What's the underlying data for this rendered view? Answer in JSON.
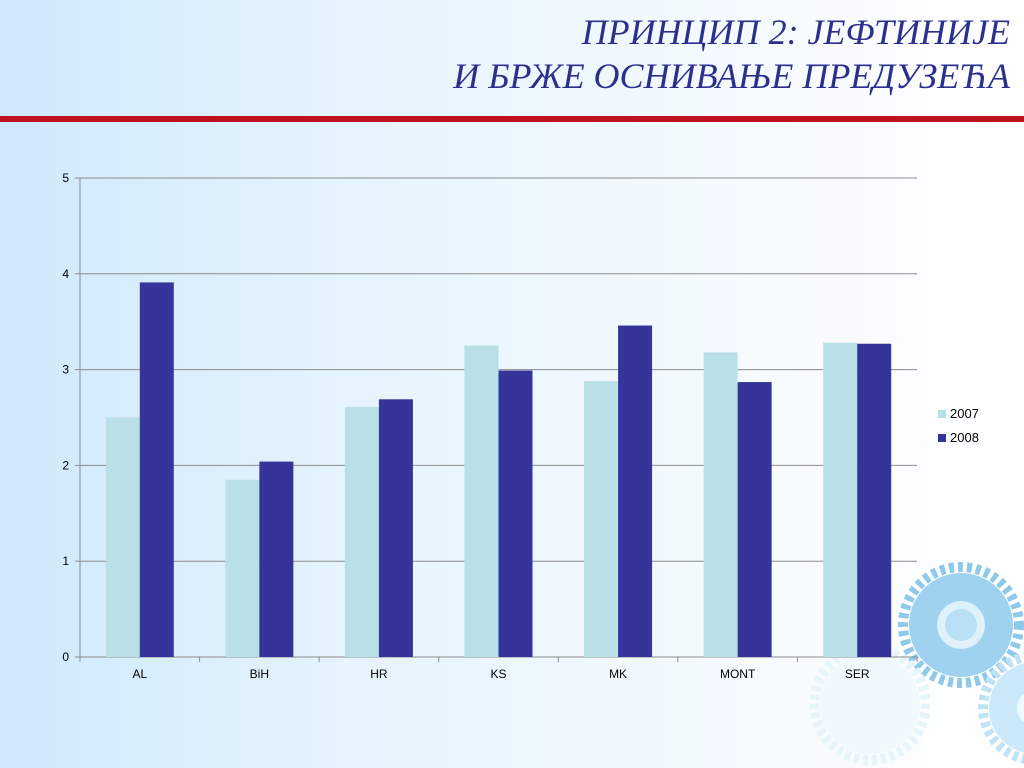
{
  "slide": {
    "title_line1": "ПРИНЦИП 2: ЈЕФТИНИЈЕ",
    "title_line2": "И БРЖЕ ОСНИВАЊЕ ПРЕДУЗЕЋА"
  },
  "colors": {
    "title": "#2b2f8e",
    "rule": "#c0111f",
    "series_2007": "#b9e0e6",
    "series_2008": "#34349a"
  },
  "chart_data": {
    "type": "bar",
    "categories": [
      "AL",
      "BiH",
      "HR",
      "KS",
      "MK",
      "MONT",
      "SER"
    ],
    "series": [
      {
        "name": "2007",
        "values": [
          2.5,
          1.85,
          2.61,
          3.25,
          2.88,
          3.18,
          3.28
        ]
      },
      {
        "name": "2008",
        "values": [
          3.91,
          2.04,
          2.69,
          2.99,
          3.46,
          2.87,
          3.27
        ]
      }
    ],
    "yticks": [
      "0",
      "1",
      "2",
      "3",
      "4",
      "5"
    ],
    "ylim": [
      0,
      5
    ],
    "grid": true,
    "legend": "right",
    "title": "",
    "xlabel": "",
    "ylabel": ""
  }
}
